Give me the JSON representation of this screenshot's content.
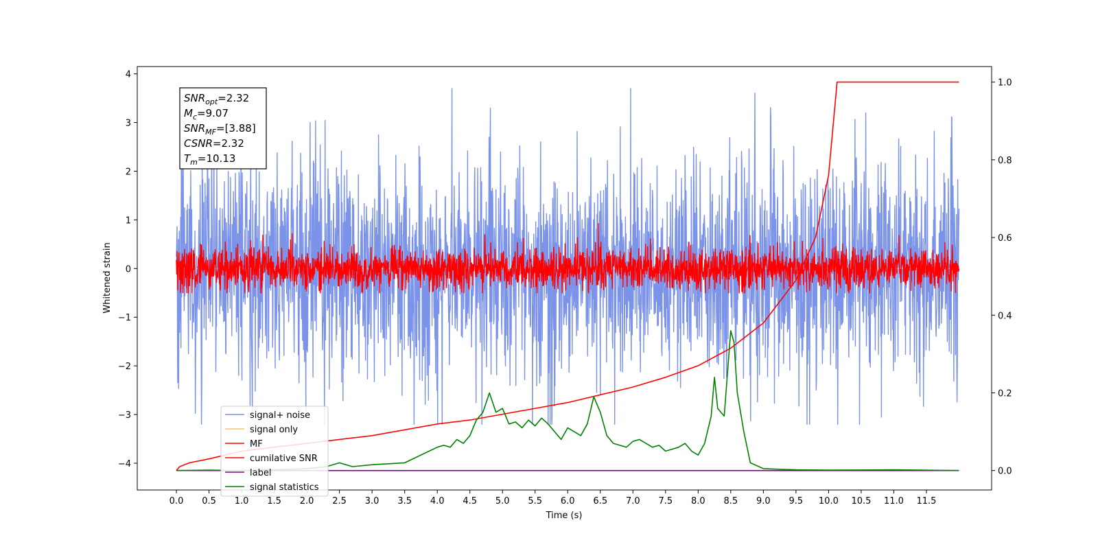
{
  "chart_data": {
    "type": "line",
    "xlabel": "Time (s)",
    "ylabel": "Whitened strain",
    "xlim": [
      -0.6,
      12.5
    ],
    "ylim": [
      -4.55,
      4.15
    ],
    "ylim_right": [
      -0.05,
      1.04
    ],
    "xticks": [
      "0.0",
      "0.5",
      "1.0",
      "1.5",
      "2.0",
      "2.5",
      "3.0",
      "3.5",
      "4.0",
      "4.5",
      "5.0",
      "5.5",
      "6.0",
      "6.5",
      "7.0",
      "7.5",
      "8.0",
      "8.5",
      "9.0",
      "9.5",
      "10.0",
      "10.5",
      "11.0",
      "11.5"
    ],
    "xtick_values": [
      0.0,
      0.5,
      1.0,
      1.5,
      2.0,
      2.5,
      3.0,
      3.5,
      4.0,
      4.5,
      5.0,
      5.5,
      6.0,
      6.5,
      7.0,
      7.5,
      8.0,
      8.5,
      9.0,
      9.5,
      10.0,
      10.5,
      11.0,
      11.5
    ],
    "yticks_left": [
      "4",
      "3",
      "2",
      "1",
      "0",
      "−1",
      "−2",
      "−3",
      "−4"
    ],
    "ytick_values_left": [
      4,
      3,
      2,
      1,
      0,
      -1,
      -2,
      -3,
      -4
    ],
    "yticks_right": [
      "1.0",
      "0.8",
      "0.6",
      "0.4",
      "0.2",
      "0.0"
    ],
    "ytick_values_right": [
      1.0,
      0.8,
      0.6,
      0.4,
      0.2,
      0.0
    ],
    "annotation": {
      "lines": [
        {
          "sym": "SNR",
          "sub": "opt",
          "val": "=2.32"
        },
        {
          "sym": "M",
          "sub": "c",
          "val": "=9.07"
        },
        {
          "sym": "SNR",
          "sub": "MF",
          "val": "=[3.88]"
        },
        {
          "sym": "CSNR",
          "sub": "",
          "val": "=2.32"
        },
        {
          "sym": "T",
          "sub": "m",
          "val": "=10.13"
        }
      ]
    },
    "legend_position": "lower-left",
    "series": [
      {
        "name": "signal+ noise",
        "color": "#7b93e8",
        "axis": "left",
        "x_range": [
          0.0,
          12.0
        ],
        "amplitude_range": [
          -3.2,
          3.7
        ]
      },
      {
        "name": "signal only",
        "color": "#f5c46b",
        "axis": "left",
        "x": [
          0.0,
          12.0
        ],
        "values": [
          0.0,
          0.0
        ]
      },
      {
        "name": "MF",
        "color": "#ff0000",
        "axis": "left",
        "x_range": [
          0.0,
          12.0
        ],
        "amplitude_range": [
          -0.5,
          1.0
        ]
      },
      {
        "name": "cumilative SNR",
        "color": "#ff0000",
        "axis": "right",
        "x": [
          0.0,
          0.05,
          0.2,
          0.5,
          1.0,
          1.5,
          2.0,
          2.5,
          3.0,
          3.5,
          4.0,
          4.5,
          5.0,
          5.5,
          6.0,
          6.5,
          7.0,
          7.5,
          8.0,
          8.5,
          9.0,
          9.5,
          9.8,
          10.0,
          10.13,
          10.2,
          10.5,
          11.0,
          11.5,
          12.0
        ],
        "values": [
          0.0,
          0.01,
          0.02,
          0.03,
          0.05,
          0.06,
          0.07,
          0.08,
          0.09,
          0.105,
          0.12,
          0.13,
          0.145,
          0.16,
          0.175,
          0.195,
          0.215,
          0.24,
          0.27,
          0.315,
          0.38,
          0.49,
          0.6,
          0.76,
          1.0,
          1.0,
          1.0,
          1.0,
          1.0,
          1.0
        ]
      },
      {
        "name": "label",
        "color": "#800080",
        "axis": "right",
        "x": [
          0.0,
          12.0
        ],
        "values": [
          0.0,
          0.0
        ]
      },
      {
        "name": "signal statistics",
        "color": "#008000",
        "axis": "right",
        "x": [
          0.0,
          0.5,
          1.0,
          1.5,
          2.0,
          2.3,
          2.5,
          2.7,
          3.0,
          3.5,
          4.0,
          4.1,
          4.2,
          4.3,
          4.4,
          4.5,
          4.6,
          4.7,
          4.8,
          4.9,
          5.0,
          5.1,
          5.2,
          5.3,
          5.4,
          5.5,
          5.6,
          5.7,
          5.8,
          5.9,
          6.0,
          6.1,
          6.2,
          6.3,
          6.4,
          6.5,
          6.6,
          6.7,
          6.8,
          6.9,
          7.0,
          7.1,
          7.2,
          7.3,
          7.4,
          7.5,
          7.6,
          7.7,
          7.8,
          7.9,
          8.0,
          8.1,
          8.2,
          8.25,
          8.3,
          8.4,
          8.5,
          8.55,
          8.6,
          8.7,
          8.8,
          9.0,
          9.5,
          10.0,
          11.0,
          12.0
        ],
        "values": [
          0.0,
          0.001,
          0.0,
          0.002,
          0.005,
          0.01,
          0.02,
          0.01,
          0.015,
          0.02,
          0.06,
          0.065,
          0.06,
          0.08,
          0.07,
          0.09,
          0.13,
          0.15,
          0.2,
          0.15,
          0.16,
          0.12,
          0.125,
          0.11,
          0.13,
          0.115,
          0.135,
          0.12,
          0.1,
          0.08,
          0.11,
          0.1,
          0.09,
          0.12,
          0.19,
          0.15,
          0.09,
          0.07,
          0.065,
          0.06,
          0.075,
          0.08,
          0.07,
          0.06,
          0.065,
          0.05,
          0.055,
          0.06,
          0.07,
          0.05,
          0.04,
          0.07,
          0.14,
          0.24,
          0.16,
          0.14,
          0.36,
          0.33,
          0.2,
          0.1,
          0.02,
          0.005,
          0.002,
          0.001,
          0.002,
          0.0
        ]
      }
    ]
  }
}
